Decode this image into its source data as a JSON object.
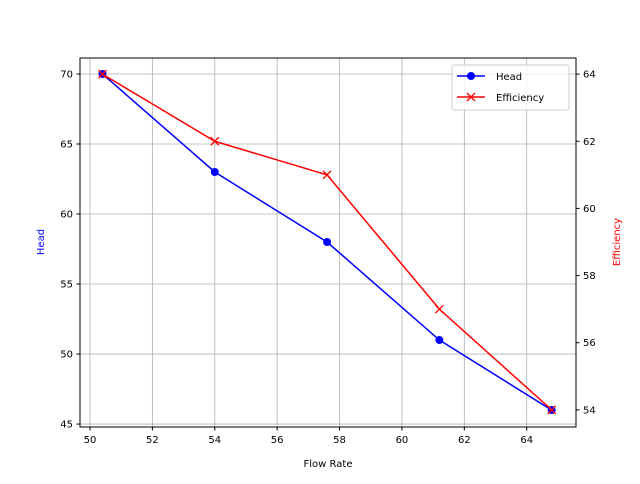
{
  "chart_data": {
    "type": "line",
    "xlabel": "Flow Rate",
    "ylabel_left": "Head",
    "ylabel_right": "Efficiency",
    "x": [
      50.4,
      54.0,
      57.6,
      61.2,
      64.8
    ],
    "xlim": [
      49.68,
      65.58
    ],
    "xticks": [
      50,
      52,
      54,
      56,
      58,
      60,
      62,
      64
    ],
    "ylim_left": [
      44.79,
      71.14
    ],
    "yticks_left": [
      45,
      50,
      55,
      60,
      65,
      70
    ],
    "ylim_right": [
      53.49,
      64.48
    ],
    "yticks_right": [
      54,
      56,
      58,
      60,
      62,
      64
    ],
    "grid": true,
    "legend_position": "upper right",
    "series": [
      {
        "name": "Head",
        "axis": "left",
        "values": [
          70,
          63,
          58,
          51,
          46
        ],
        "color": "#0000ff",
        "marker": "circle"
      },
      {
        "name": "Efficiency",
        "axis": "right",
        "values": [
          64,
          62,
          61,
          57,
          54
        ],
        "color": "#ff0000",
        "marker": "x"
      }
    ]
  }
}
